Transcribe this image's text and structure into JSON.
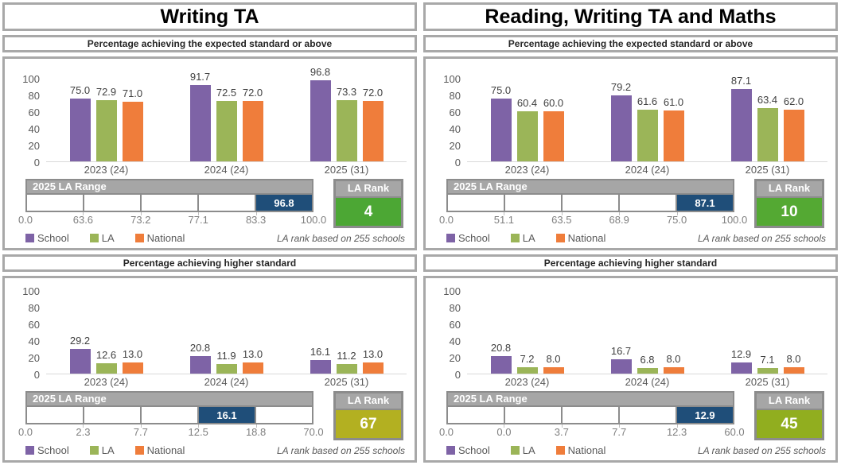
{
  "page": {
    "legend": [
      {
        "label": "School",
        "color": "#7E63A6"
      },
      {
        "label": "LA",
        "color": "#9BB558"
      },
      {
        "label": "National",
        "color": "#EF7D3B"
      }
    ],
    "note": "LA rank based on 255 schools",
    "colors": {
      "box_border": "#A8A8A8",
      "header_gray": "#A6A6A6",
      "range_border": "#8C8C8C",
      "range_highlight": "#1F4E79"
    }
  },
  "panels": [
    {
      "title": "Writing TA",
      "subtitles": [
        "Percentage achieving the expected standard or above",
        "Percentage achieving higher standard"
      ]
    },
    {
      "title": "Reading, Writing TA and Maths",
      "subtitles": [
        "Percentage achieving the expected standard or above",
        "Percentage achieving higher standard"
      ]
    }
  ],
  "chart_data": [
    {
      "type": "bar",
      "panel": "Writing TA",
      "title": "Percentage achieving the expected standard or above",
      "categories": [
        "2023 (24)",
        "2024 (24)",
        "2025 (31)"
      ],
      "series": [
        {
          "name": "School",
          "color": "#7E63A6",
          "values": [
            75.0,
            91.7,
            96.8
          ]
        },
        {
          "name": "LA",
          "color": "#9BB558",
          "values": [
            72.9,
            72.5,
            73.3
          ]
        },
        {
          "name": "National",
          "color": "#EF7D3B",
          "values": [
            71.0,
            72.0,
            72.0
          ]
        }
      ],
      "ylim": [
        0,
        100
      ],
      "yticks": [
        0,
        20,
        40,
        60,
        80,
        100
      ],
      "la_range": {
        "header": "2025 LA Range",
        "boundaries": [
          "0.0",
          "63.6",
          "73.2",
          "77.1",
          "83.3",
          "100.0"
        ],
        "highlight_index": 4,
        "highlight_value": "96.8",
        "highlight_color": "#1F4E79"
      },
      "la_rank": {
        "header": "LA Rank",
        "value": "4",
        "color": "#4CA734"
      }
    },
    {
      "type": "bar",
      "panel": "Writing TA",
      "title": "Percentage achieving higher standard",
      "categories": [
        "2023 (24)",
        "2024 (24)",
        "2025 (31)"
      ],
      "series": [
        {
          "name": "School",
          "color": "#7E63A6",
          "values": [
            29.2,
            20.8,
            16.1
          ]
        },
        {
          "name": "LA",
          "color": "#9BB558",
          "values": [
            12.6,
            11.9,
            11.2
          ]
        },
        {
          "name": "National",
          "color": "#EF7D3B",
          "values": [
            13.0,
            13.0,
            13.0
          ]
        }
      ],
      "ylim": [
        0,
        100
      ],
      "yticks": [
        0,
        20,
        40,
        60,
        80,
        100
      ],
      "la_range": {
        "header": "2025 LA Range",
        "boundaries": [
          "0.0",
          "2.3",
          "7.7",
          "12.5",
          "18.8",
          "70.0"
        ],
        "highlight_index": 3,
        "highlight_value": "16.1",
        "highlight_color": "#1F4E79"
      },
      "la_rank": {
        "header": "LA Rank",
        "value": "67",
        "color": "#B3B021"
      }
    },
    {
      "type": "bar",
      "panel": "Reading, Writing TA and Maths",
      "title": "Percentage achieving the expected standard or above",
      "categories": [
        "2023 (24)",
        "2024 (24)",
        "2025 (31)"
      ],
      "series": [
        {
          "name": "School",
          "color": "#7E63A6",
          "values": [
            75.0,
            79.2,
            87.1
          ]
        },
        {
          "name": "LA",
          "color": "#9BB558",
          "values": [
            60.4,
            61.6,
            63.4
          ]
        },
        {
          "name": "National",
          "color": "#EF7D3B",
          "values": [
            60.0,
            61.0,
            62.0
          ]
        }
      ],
      "ylim": [
        0,
        100
      ],
      "yticks": [
        0,
        20,
        40,
        60,
        80,
        100
      ],
      "la_range": {
        "header": "2025 LA Range",
        "boundaries": [
          "0.0",
          "51.1",
          "63.5",
          "68.9",
          "75.0",
          "100.0"
        ],
        "highlight_index": 4,
        "highlight_value": "87.1",
        "highlight_color": "#1F4E79"
      },
      "la_rank": {
        "header": "LA Rank",
        "value": "10",
        "color": "#54A933"
      }
    },
    {
      "type": "bar",
      "panel": "Reading, Writing TA and Maths",
      "title": "Percentage achieving higher standard",
      "categories": [
        "2023 (24)",
        "2024 (24)",
        "2025 (31)"
      ],
      "series": [
        {
          "name": "School",
          "color": "#7E63A6",
          "values": [
            20.8,
            16.7,
            12.9
          ]
        },
        {
          "name": "LA",
          "color": "#9BB558",
          "values": [
            7.2,
            6.8,
            7.1
          ]
        },
        {
          "name": "National",
          "color": "#EF7D3B",
          "values": [
            8.0,
            8.0,
            8.0
          ]
        }
      ],
      "ylim": [
        0,
        100
      ],
      "yticks": [
        0,
        20,
        40,
        60,
        80,
        100
      ],
      "la_range": {
        "header": "2025 LA Range",
        "boundaries": [
          "0.0",
          "0.0",
          "3.7",
          "7.7",
          "12.3",
          "60.0"
        ],
        "highlight_index": 4,
        "highlight_value": "12.9",
        "highlight_color": "#1F4E79"
      },
      "la_rank": {
        "header": "LA Rank",
        "value": "45",
        "color": "#91AE1F"
      }
    }
  ]
}
